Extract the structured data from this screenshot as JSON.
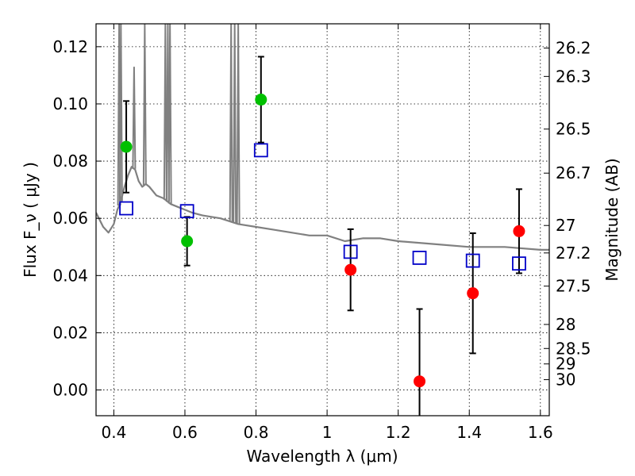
{
  "chart_data": {
    "type": "scatter",
    "xlabel": "Wavelength  λ (μm)",
    "ylabel": "Flux  F_ν  ( μJy )",
    "ylabel_right": "Magnitude (AB)",
    "xlim": [
      0.35,
      1.625
    ],
    "ylim": [
      -0.009,
      0.128
    ],
    "x_ticks": [
      0.4,
      0.6,
      0.8,
      1.0,
      1.2,
      1.4,
      1.6
    ],
    "x_tick_labels": [
      "0.4",
      "0.6",
      "0.8",
      "1",
      "1.2",
      "1.4",
      "1.6"
    ],
    "y_ticks": [
      0.0,
      0.02,
      0.04,
      0.06,
      0.08,
      0.1,
      0.12
    ],
    "y_tick_labels": [
      "0.00",
      "0.02",
      "0.04",
      "0.06",
      "0.08",
      "0.10",
      "0.12"
    ],
    "right_ticks": [
      {
        "label": "26.2",
        "flux": 0.1195
      },
      {
        "label": "26.3",
        "flux": 0.1096
      },
      {
        "label": "26.5",
        "flux": 0.0912
      },
      {
        "label": "26.7",
        "flux": 0.0758
      },
      {
        "label": "27",
        "flux": 0.0575
      },
      {
        "label": "27.2",
        "flux": 0.0479
      },
      {
        "label": "27.5",
        "flux": 0.0363
      },
      {
        "label": "28",
        "flux": 0.0229
      },
      {
        "label": "28.5",
        "flux": 0.0145
      },
      {
        "label": "29",
        "flux": 0.0091
      },
      {
        "label": "30",
        "flux": 0.0036
      }
    ],
    "grid": true,
    "colors": {
      "model": "#808080",
      "green": "#00c000",
      "red": "#ff0000",
      "model_box": "#0000c8",
      "errorbar": "#000000"
    },
    "series": [
      {
        "name": "observed-green",
        "marker": "circle",
        "color": "#00c000",
        "points": [
          {
            "x": 0.435,
            "y": 0.085,
            "err": 0.016
          },
          {
            "x": 0.606,
            "y": 0.052,
            "err": 0.0085
          },
          {
            "x": 0.814,
            "y": 0.1015,
            "err": 0.015
          }
        ]
      },
      {
        "name": "observed-red",
        "marker": "circle",
        "color": "#ff0000",
        "points": [
          {
            "x": 1.066,
            "y": 0.042,
            "err": 0.0142
          },
          {
            "x": 1.26,
            "y": 0.003,
            "err": 0.0253
          },
          {
            "x": 1.41,
            "y": 0.0338,
            "err": 0.021
          },
          {
            "x": 1.54,
            "y": 0.0555,
            "err": 0.0147
          }
        ]
      },
      {
        "name": "model-photometry",
        "marker": "square",
        "color": "#0000c8",
        "points": [
          {
            "x": 0.435,
            "y": 0.0635
          },
          {
            "x": 0.606,
            "y": 0.0625
          },
          {
            "x": 0.814,
            "y": 0.0838
          },
          {
            "x": 1.066,
            "y": 0.0483
          },
          {
            "x": 1.26,
            "y": 0.0462
          },
          {
            "x": 1.41,
            "y": 0.0452
          },
          {
            "x": 1.54,
            "y": 0.0442
          }
        ]
      }
    ],
    "model_spectrum": {
      "name": "template-spectrum",
      "color": "#808080",
      "x": [
        0.35,
        0.37,
        0.385,
        0.4,
        0.41,
        0.42,
        0.43,
        0.44,
        0.45,
        0.46,
        0.47,
        0.48,
        0.49,
        0.5,
        0.52,
        0.54,
        0.56,
        0.58,
        0.6,
        0.62,
        0.65,
        0.7,
        0.75,
        0.8,
        0.85,
        0.9,
        0.95,
        1.0,
        1.05,
        1.1,
        1.15,
        1.2,
        1.3,
        1.4,
        1.5,
        1.6,
        1.625
      ],
      "y": [
        0.062,
        0.057,
        0.055,
        0.058,
        0.063,
        0.066,
        0.071,
        0.075,
        0.078,
        0.077,
        0.073,
        0.071,
        0.072,
        0.071,
        0.068,
        0.067,
        0.065,
        0.064,
        0.063,
        0.062,
        0.061,
        0.06,
        0.058,
        0.057,
        0.056,
        0.055,
        0.054,
        0.054,
        0.052,
        0.053,
        0.053,
        0.052,
        0.051,
        0.05,
        0.05,
        0.049,
        0.049
      ],
      "emission_lines": [
        {
          "x": 0.415,
          "top": 0.128
        },
        {
          "x": 0.42,
          "top": 0.128
        },
        {
          "x": 0.457,
          "top": 0.113
        },
        {
          "x": 0.487,
          "top": 0.128
        },
        {
          "x": 0.545,
          "top": 0.128
        },
        {
          "x": 0.552,
          "top": 0.128
        },
        {
          "x": 0.558,
          "top": 0.128
        },
        {
          "x": 0.73,
          "top": 0.128
        },
        {
          "x": 0.74,
          "top": 0.128
        },
        {
          "x": 0.75,
          "top": 0.128
        }
      ]
    }
  }
}
